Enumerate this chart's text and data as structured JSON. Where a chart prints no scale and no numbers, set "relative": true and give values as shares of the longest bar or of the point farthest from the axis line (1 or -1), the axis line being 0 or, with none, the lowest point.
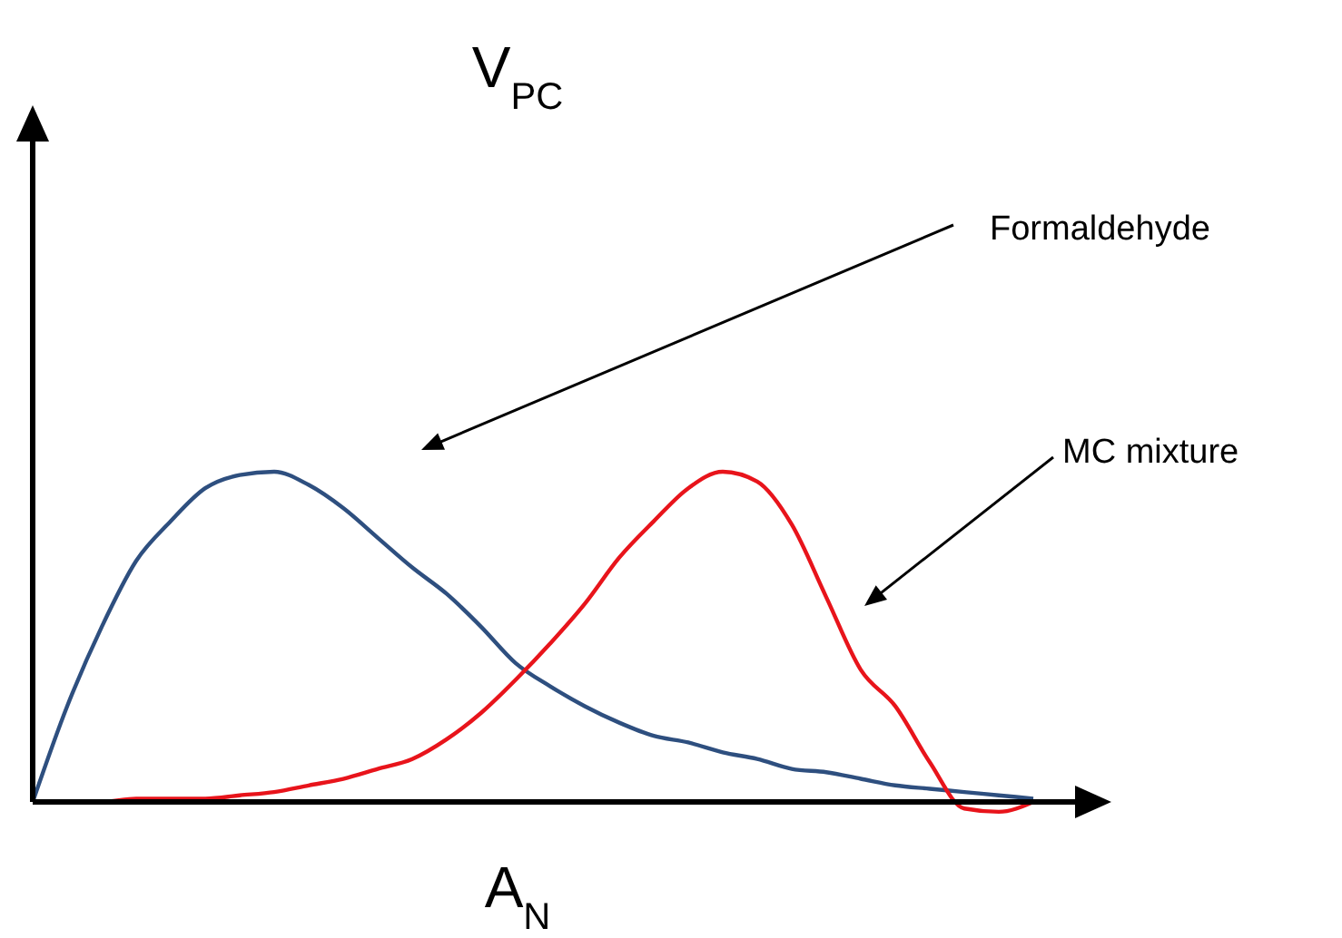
{
  "chart_data": {
    "type": "line",
    "relative": true,
    "xlabel": "A$_{N}$",
    "marker": "none",
    "annotations": [
      "V$_{PC}$",
      "Formaldehyde",
      "MC mixture"
    ],
    "categories": [
      null,
      null,
      null,
      null,
      null,
      null,
      null,
      null,
      null,
      null,
      null,
      null,
      null,
      null,
      null,
      null,
      null,
      null,
      null,
      null,
      null,
      null,
      null,
      null,
      null,
      null,
      null,
      null,
      null,
      null
    ],
    "series": [
      {
        "color": "#2e4f7f",
        "values": [
          0,
          0.29,
          0.53,
          0.73,
          0.85,
          0.95,
          0.99,
          1,
          0.96,
          0.89,
          0.8,
          0.71,
          0.63,
          0.53,
          0.42,
          0.35,
          0.29,
          0.24,
          0.2,
          0.18,
          0.15,
          0.13,
          0.1,
          0.09,
          0.07,
          0.05,
          0.04,
          0.03,
          0.02,
          0.01
        ]
      },
      {
        "color": "#e8141b",
        "values": [
          0,
          0,
          0,
          0.01,
          0.01,
          0.01,
          0.02,
          0.03,
          0.05,
          0.07,
          0.1,
          0.13,
          0.19,
          0.27,
          0.37,
          0.48,
          0.6,
          0.74,
          0.85,
          0.95,
          1,
          0.97,
          0.84,
          0.62,
          0.4,
          0.29,
          0.12,
          -0.02,
          -0.03,
          0
        ]
      }
    ]
  }
}
